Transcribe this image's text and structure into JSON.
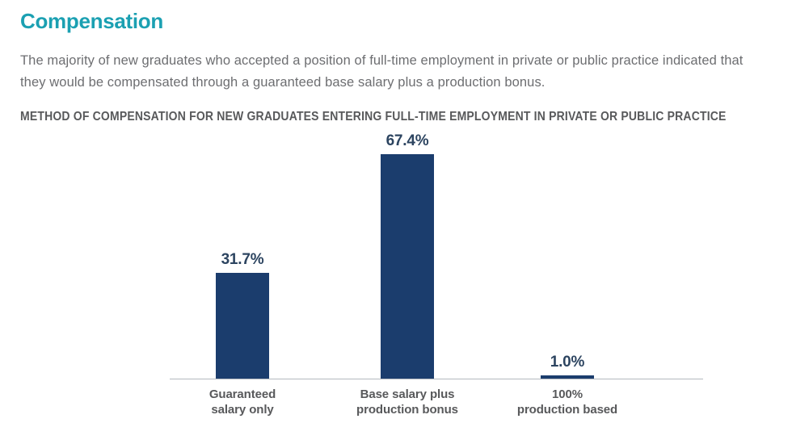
{
  "header": {
    "title": "Compensation"
  },
  "intro": {
    "text": "The majority of new graduates who accepted a position of full-time employment in private or public practice indicated that they would be compensated through a guaranteed base salary plus a production bonus."
  },
  "chart_data": {
    "type": "bar",
    "title": "METHOD OF COMPENSATION FOR NEW GRADUATES ENTERING FULL-TIME EMPLOYMENT IN PRIVATE OR PUBLIC PRACTICE",
    "categories": [
      "Guaranteed salary only",
      "Base salary plus production bonus",
      "100% production based"
    ],
    "category_lines": [
      [
        "Guaranteed",
        "salary only"
      ],
      [
        "Base salary plus",
        "production bonus"
      ],
      [
        "100%",
        "production based"
      ]
    ],
    "values": [
      31.7,
      67.4,
      1.0
    ],
    "value_labels": [
      "31.7%",
      "67.4%",
      "1.0%"
    ],
    "xlabel": "",
    "ylabel": "",
    "ylim": [
      0,
      70
    ],
    "grid": false,
    "legend": false,
    "axis": "x-baseline-only"
  },
  "colors": {
    "accent_teal": "#1BA0B2",
    "bar_navy": "#1B3D6D",
    "value_label_navy": "#2C4460",
    "body_text_gray": "#6D6E71",
    "heading_text_gray": "#58595B",
    "axis_line_gray": "#B3B9BF",
    "background": "#FFFFFF"
  }
}
